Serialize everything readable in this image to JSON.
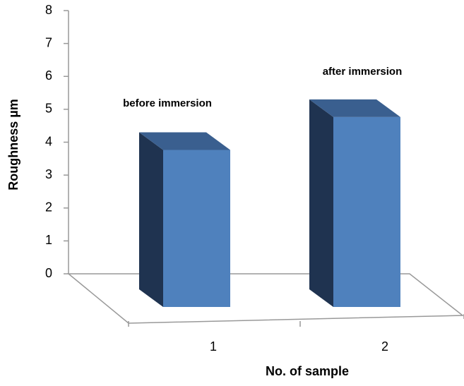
{
  "chart_data": {
    "type": "bar3d",
    "categories": [
      "1",
      "2"
    ],
    "values": [
      4.3,
      5.3
    ],
    "annotations": [
      "before immersion",
      "after immersion"
    ],
    "x_label": "No. of sample",
    "y_label": "Roughness µm",
    "color": "#4f81bd",
    "ylim": [
      0,
      8
    ],
    "yticks": [
      0,
      1,
      2,
      3,
      4,
      5,
      6,
      7,
      8
    ],
    "grid": false
  }
}
